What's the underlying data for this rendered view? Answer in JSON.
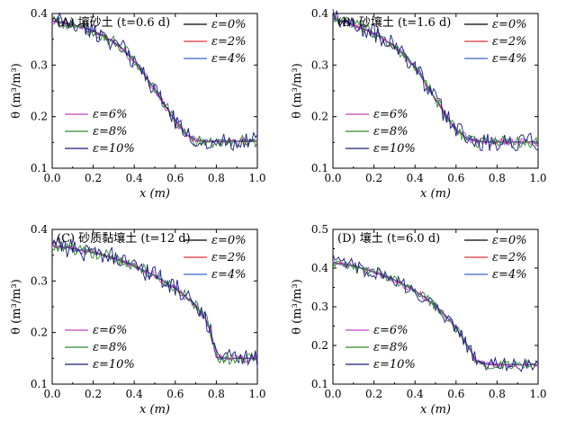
{
  "figure": {
    "legend_prefix": "ε=",
    "series_names": [
      "0%",
      "2%",
      "4%",
      "6%",
      "8%",
      "10%"
    ],
    "series_colors": [
      "#000000",
      "#e03040",
      "#3a66c8",
      "#c040c8",
      "#2a8a2a",
      "#1a1a7a"
    ]
  },
  "chart_data": [
    {
      "type": "line",
      "panel_label": "(A) 壤砂土 (t=0.6 d)",
      "title": "(A) 壤砂土 (t=0.6 d)",
      "xlabel": "x (m)",
      "ylabel": "θ (m³/m³)",
      "xlim": [
        0,
        1.0
      ],
      "ylim": [
        0.1,
        0.4
      ],
      "xticks": [
        0.0,
        0.2,
        0.4,
        0.6,
        0.8,
        1.0
      ],
      "xtick_labels": [
        "0.0",
        "0.2",
        "0.4",
        "0.6",
        "0.8",
        "1.0"
      ],
      "yticks": [
        0.1,
        0.2,
        0.3,
        0.4
      ],
      "ytick_labels": [
        "0.1",
        "0.2",
        "0.3",
        "0.4"
      ],
      "x": [
        0.0,
        0.05,
        0.1,
        0.15,
        0.2,
        0.25,
        0.3,
        0.35,
        0.4,
        0.45,
        0.5,
        0.55,
        0.6,
        0.65,
        0.7,
        0.75,
        0.8,
        0.85,
        0.9,
        0.95,
        1.0
      ],
      "series": [
        {
          "name": "ε=0%",
          "values": [
            0.385,
            0.382,
            0.378,
            0.373,
            0.366,
            0.357,
            0.345,
            0.329,
            0.307,
            0.281,
            0.253,
            0.222,
            0.192,
            0.166,
            0.153,
            0.152,
            0.152,
            0.152,
            0.152,
            0.152,
            0.152
          ]
        },
        {
          "name": "ε=2%",
          "values": [
            0.386,
            0.383,
            0.379,
            0.373,
            0.365,
            0.356,
            0.344,
            0.328,
            0.307,
            0.281,
            0.252,
            0.221,
            0.191,
            0.166,
            0.153,
            0.152,
            0.152,
            0.152,
            0.152,
            0.152,
            0.152
          ]
        },
        {
          "name": "ε=4%",
          "values": [
            0.384,
            0.383,
            0.377,
            0.372,
            0.366,
            0.357,
            0.343,
            0.328,
            0.308,
            0.282,
            0.252,
            0.222,
            0.193,
            0.167,
            0.154,
            0.152,
            0.152,
            0.152,
            0.152,
            0.152,
            0.152
          ]
        },
        {
          "name": "ε=6%",
          "values": [
            0.383,
            0.381,
            0.378,
            0.372,
            0.364,
            0.358,
            0.344,
            0.327,
            0.306,
            0.282,
            0.254,
            0.221,
            0.191,
            0.166,
            0.154,
            0.152,
            0.152,
            0.152,
            0.152,
            0.152,
            0.152
          ]
        },
        {
          "name": "ε=8%",
          "values": [
            0.387,
            0.382,
            0.379,
            0.371,
            0.366,
            0.355,
            0.345,
            0.33,
            0.308,
            0.28,
            0.252,
            0.223,
            0.192,
            0.165,
            0.153,
            0.152,
            0.152,
            0.152,
            0.152,
            0.152,
            0.152
          ]
        },
        {
          "name": "ε=10%",
          "values": [
            0.382,
            0.384,
            0.376,
            0.374,
            0.364,
            0.358,
            0.343,
            0.33,
            0.306,
            0.283,
            0.251,
            0.223,
            0.19,
            0.167,
            0.153,
            0.152,
            0.152,
            0.152,
            0.152,
            0.152,
            0.152
          ]
        }
      ]
    },
    {
      "type": "line",
      "panel_label": "(B) 砂壤土 (t=1.6 d)",
      "title": "(B) 砂壤土 (t=1.6 d)",
      "xlabel": "x (m)",
      "ylabel": "θ (m³/m³)",
      "xlim": [
        0,
        1.0
      ],
      "ylim": [
        0.1,
        0.4
      ],
      "xticks": [
        0.0,
        0.2,
        0.4,
        0.6,
        0.8,
        1.0
      ],
      "xtick_labels": [
        "0.0",
        "0.2",
        "0.4",
        "0.6",
        "0.8",
        "1.0"
      ],
      "yticks": [
        0.1,
        0.2,
        0.3,
        0.4
      ],
      "ytick_labels": [
        "0.1",
        "0.2",
        "0.3",
        "0.4"
      ],
      "x": [
        0.0,
        0.05,
        0.1,
        0.15,
        0.2,
        0.25,
        0.3,
        0.35,
        0.4,
        0.45,
        0.5,
        0.55,
        0.6,
        0.65,
        0.7,
        0.75,
        0.8,
        0.85,
        0.9,
        0.95,
        1.0
      ],
      "series": [
        {
          "name": "ε=0%",
          "values": [
            0.39,
            0.385,
            0.378,
            0.37,
            0.361,
            0.35,
            0.336,
            0.318,
            0.295,
            0.266,
            0.234,
            0.202,
            0.175,
            0.158,
            0.152,
            0.151,
            0.151,
            0.151,
            0.151,
            0.151,
            0.151
          ]
        },
        {
          "name": "ε=2%",
          "values": [
            0.391,
            0.384,
            0.379,
            0.369,
            0.362,
            0.349,
            0.337,
            0.317,
            0.296,
            0.265,
            0.235,
            0.201,
            0.176,
            0.157,
            0.153,
            0.151,
            0.151,
            0.151,
            0.151,
            0.151,
            0.151
          ]
        },
        {
          "name": "ε=4%",
          "values": [
            0.389,
            0.386,
            0.377,
            0.371,
            0.36,
            0.351,
            0.335,
            0.319,
            0.294,
            0.267,
            0.233,
            0.203,
            0.174,
            0.159,
            0.152,
            0.151,
            0.151,
            0.151,
            0.151,
            0.151,
            0.151
          ]
        },
        {
          "name": "ε=6%",
          "values": [
            0.392,
            0.384,
            0.378,
            0.371,
            0.362,
            0.349,
            0.337,
            0.318,
            0.296,
            0.266,
            0.234,
            0.202,
            0.175,
            0.158,
            0.153,
            0.151,
            0.151,
            0.151,
            0.151,
            0.151,
            0.151
          ]
        },
        {
          "name": "ε=8%",
          "values": [
            0.388,
            0.386,
            0.379,
            0.369,
            0.361,
            0.351,
            0.336,
            0.317,
            0.295,
            0.267,
            0.235,
            0.201,
            0.176,
            0.158,
            0.152,
            0.151,
            0.151,
            0.151,
            0.151,
            0.151,
            0.151
          ]
        },
        {
          "name": "ε=10%",
          "values": [
            0.393,
            0.383,
            0.38,
            0.368,
            0.363,
            0.348,
            0.338,
            0.316,
            0.297,
            0.264,
            0.236,
            0.2,
            0.177,
            0.157,
            0.153,
            0.151,
            0.151,
            0.151,
            0.151,
            0.151,
            0.151
          ]
        }
      ]
    },
    {
      "type": "line",
      "panel_label": "(C) 砂质黏壤土 (t=12 d)",
      "title": "(C) 砂质黏壤土 (t=12 d)",
      "xlabel": "x (m)",
      "ylabel": "θ (m³/m³)",
      "xlim": [
        0,
        1.0
      ],
      "ylim": [
        0.1,
        0.4
      ],
      "xticks": [
        0.0,
        0.2,
        0.4,
        0.6,
        0.8,
        1.0
      ],
      "xtick_labels": [
        "0.0",
        "0.2",
        "0.4",
        "0.6",
        "0.8",
        "1.0"
      ],
      "yticks": [
        0.1,
        0.2,
        0.3,
        0.4
      ],
      "ytick_labels": [
        "0.1",
        "0.2",
        "0.3",
        "0.4"
      ],
      "x": [
        0.0,
        0.05,
        0.1,
        0.15,
        0.2,
        0.25,
        0.3,
        0.35,
        0.4,
        0.45,
        0.5,
        0.55,
        0.6,
        0.65,
        0.7,
        0.75,
        0.78,
        0.8,
        0.85,
        0.9,
        0.95,
        1.0
      ],
      "series": [
        {
          "name": "ε=0%",
          "values": [
            0.368,
            0.366,
            0.363,
            0.359,
            0.355,
            0.35,
            0.344,
            0.337,
            0.329,
            0.32,
            0.31,
            0.298,
            0.285,
            0.27,
            0.252,
            0.226,
            0.19,
            0.152,
            0.15,
            0.15,
            0.15,
            0.15
          ]
        },
        {
          "name": "ε=2%",
          "values": [
            0.369,
            0.365,
            0.364,
            0.358,
            0.356,
            0.349,
            0.345,
            0.336,
            0.33,
            0.319,
            0.311,
            0.297,
            0.286,
            0.269,
            0.253,
            0.225,
            0.191,
            0.153,
            0.15,
            0.15,
            0.15,
            0.15
          ]
        },
        {
          "name": "ε=4%",
          "values": [
            0.367,
            0.367,
            0.362,
            0.36,
            0.354,
            0.351,
            0.343,
            0.338,
            0.328,
            0.321,
            0.309,
            0.299,
            0.284,
            0.271,
            0.251,
            0.227,
            0.189,
            0.152,
            0.15,
            0.15,
            0.15,
            0.15
          ]
        },
        {
          "name": "ε=6%",
          "values": [
            0.37,
            0.364,
            0.364,
            0.357,
            0.357,
            0.348,
            0.346,
            0.335,
            0.331,
            0.318,
            0.312,
            0.296,
            0.287,
            0.268,
            0.254,
            0.224,
            0.192,
            0.153,
            0.15,
            0.15,
            0.15,
            0.15
          ]
        },
        {
          "name": "ε=8%",
          "values": [
            0.366,
            0.368,
            0.361,
            0.361,
            0.353,
            0.352,
            0.342,
            0.339,
            0.327,
            0.322,
            0.308,
            0.3,
            0.283,
            0.272,
            0.25,
            0.228,
            0.188,
            0.152,
            0.15,
            0.15,
            0.15,
            0.15
          ]
        },
        {
          "name": "ε=10%",
          "values": [
            0.371,
            0.363,
            0.365,
            0.356,
            0.358,
            0.347,
            0.347,
            0.334,
            0.332,
            0.317,
            0.313,
            0.295,
            0.288,
            0.267,
            0.255,
            0.223,
            0.193,
            0.153,
            0.15,
            0.15,
            0.15,
            0.15
          ]
        }
      ]
    },
    {
      "type": "line",
      "panel_label": "(D) 壤土 (t=6.0 d)",
      "title": "(D) 壤土 (t=6.0 d)",
      "xlabel": "x (m)",
      "ylabel": "θ (m³/m³)",
      "xlim": [
        0,
        1.0
      ],
      "ylim": [
        0.1,
        0.5
      ],
      "xticks": [
        0.0,
        0.2,
        0.4,
        0.6,
        0.8,
        1.0
      ],
      "xtick_labels": [
        "0.0",
        "0.2",
        "0.4",
        "0.6",
        "0.8",
        "1.0"
      ],
      "yticks": [
        0.1,
        0.2,
        0.3,
        0.4,
        0.5
      ],
      "ytick_labels": [
        "0.1",
        "0.2",
        "0.3",
        "0.4",
        "0.5"
      ],
      "x": [
        0.0,
        0.05,
        0.1,
        0.15,
        0.2,
        0.25,
        0.3,
        0.35,
        0.4,
        0.45,
        0.5,
        0.55,
        0.6,
        0.65,
        0.7,
        0.75,
        0.8,
        0.85,
        0.9,
        0.95,
        1.0
      ],
      "series": [
        {
          "name": "ε=0%",
          "values": [
            0.415,
            0.411,
            0.405,
            0.398,
            0.39,
            0.38,
            0.369,
            0.356,
            0.341,
            0.323,
            0.302,
            0.277,
            0.245,
            0.205,
            0.16,
            0.151,
            0.15,
            0.15,
            0.15,
            0.15,
            0.15
          ]
        },
        {
          "name": "ε=2%",
          "values": [
            0.416,
            0.41,
            0.406,
            0.397,
            0.391,
            0.379,
            0.37,
            0.355,
            0.342,
            0.322,
            0.303,
            0.276,
            0.246,
            0.204,
            0.161,
            0.151,
            0.15,
            0.15,
            0.15,
            0.15,
            0.15
          ]
        },
        {
          "name": "ε=4%",
          "values": [
            0.414,
            0.412,
            0.404,
            0.399,
            0.389,
            0.381,
            0.368,
            0.357,
            0.34,
            0.324,
            0.301,
            0.278,
            0.244,
            0.206,
            0.159,
            0.151,
            0.15,
            0.15,
            0.15,
            0.15,
            0.15
          ]
        },
        {
          "name": "ε=6%",
          "values": [
            0.417,
            0.409,
            0.407,
            0.396,
            0.392,
            0.378,
            0.371,
            0.354,
            0.343,
            0.321,
            0.304,
            0.275,
            0.247,
            0.203,
            0.162,
            0.151,
            0.15,
            0.15,
            0.15,
            0.15,
            0.15
          ]
        },
        {
          "name": "ε=8%",
          "values": [
            0.413,
            0.413,
            0.403,
            0.4,
            0.388,
            0.382,
            0.367,
            0.358,
            0.339,
            0.325,
            0.3,
            0.279,
            0.243,
            0.207,
            0.158,
            0.151,
            0.15,
            0.15,
            0.15,
            0.15,
            0.15
          ]
        },
        {
          "name": "ε=10%",
          "values": [
            0.418,
            0.408,
            0.408,
            0.395,
            0.393,
            0.377,
            0.372,
            0.353,
            0.344,
            0.32,
            0.305,
            0.274,
            0.248,
            0.202,
            0.163,
            0.151,
            0.15,
            0.15,
            0.15,
            0.15,
            0.15
          ]
        }
      ]
    }
  ]
}
